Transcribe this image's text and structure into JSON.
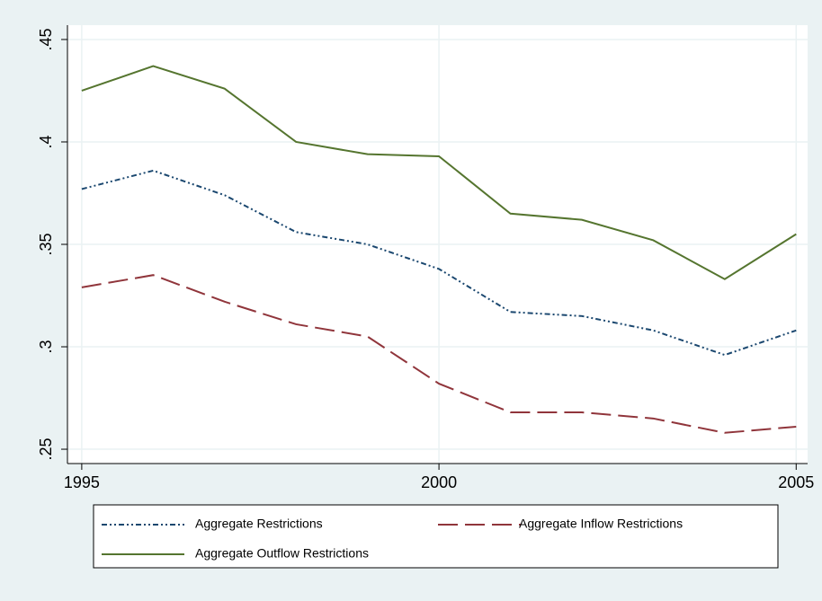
{
  "chart_data": {
    "type": "line",
    "x": [
      1995,
      1996,
      1997,
      1998,
      1999,
      2000,
      2001,
      2002,
      2003,
      2004,
      2005
    ],
    "xlim": [
      1994.8,
      2005.16
    ],
    "xticks": [
      1995,
      2000,
      2005
    ],
    "ylim": [
      0.243,
      0.457
    ],
    "yticks": [
      {
        "value": 0.25,
        "label": ".25"
      },
      {
        "value": 0.3,
        "label": ".3"
      },
      {
        "value": 0.35,
        "label": ".35"
      },
      {
        "value": 0.4,
        "label": ".4"
      },
      {
        "value": 0.45,
        "label": ".45"
      }
    ],
    "grid": true,
    "series": [
      {
        "name": "Aggregate Restrictions",
        "color": "#1a476f",
        "style": "dashdot",
        "values": [
          0.377,
          0.386,
          0.374,
          0.356,
          0.35,
          0.338,
          0.317,
          0.315,
          0.308,
          0.296,
          0.308
        ]
      },
      {
        "name": "Aggregate Inflow Restrictions",
        "color": "#90353b",
        "style": "dash",
        "values": [
          0.329,
          0.335,
          0.322,
          0.311,
          0.305,
          0.282,
          0.268,
          0.268,
          0.265,
          0.258,
          0.261
        ]
      },
      {
        "name": "Aggregate Outflow Restrictions",
        "color": "#55752f",
        "style": "solid",
        "values": [
          0.425,
          0.437,
          0.426,
          0.4,
          0.394,
          0.393,
          0.365,
          0.362,
          0.352,
          0.333,
          0.355
        ]
      }
    ]
  }
}
